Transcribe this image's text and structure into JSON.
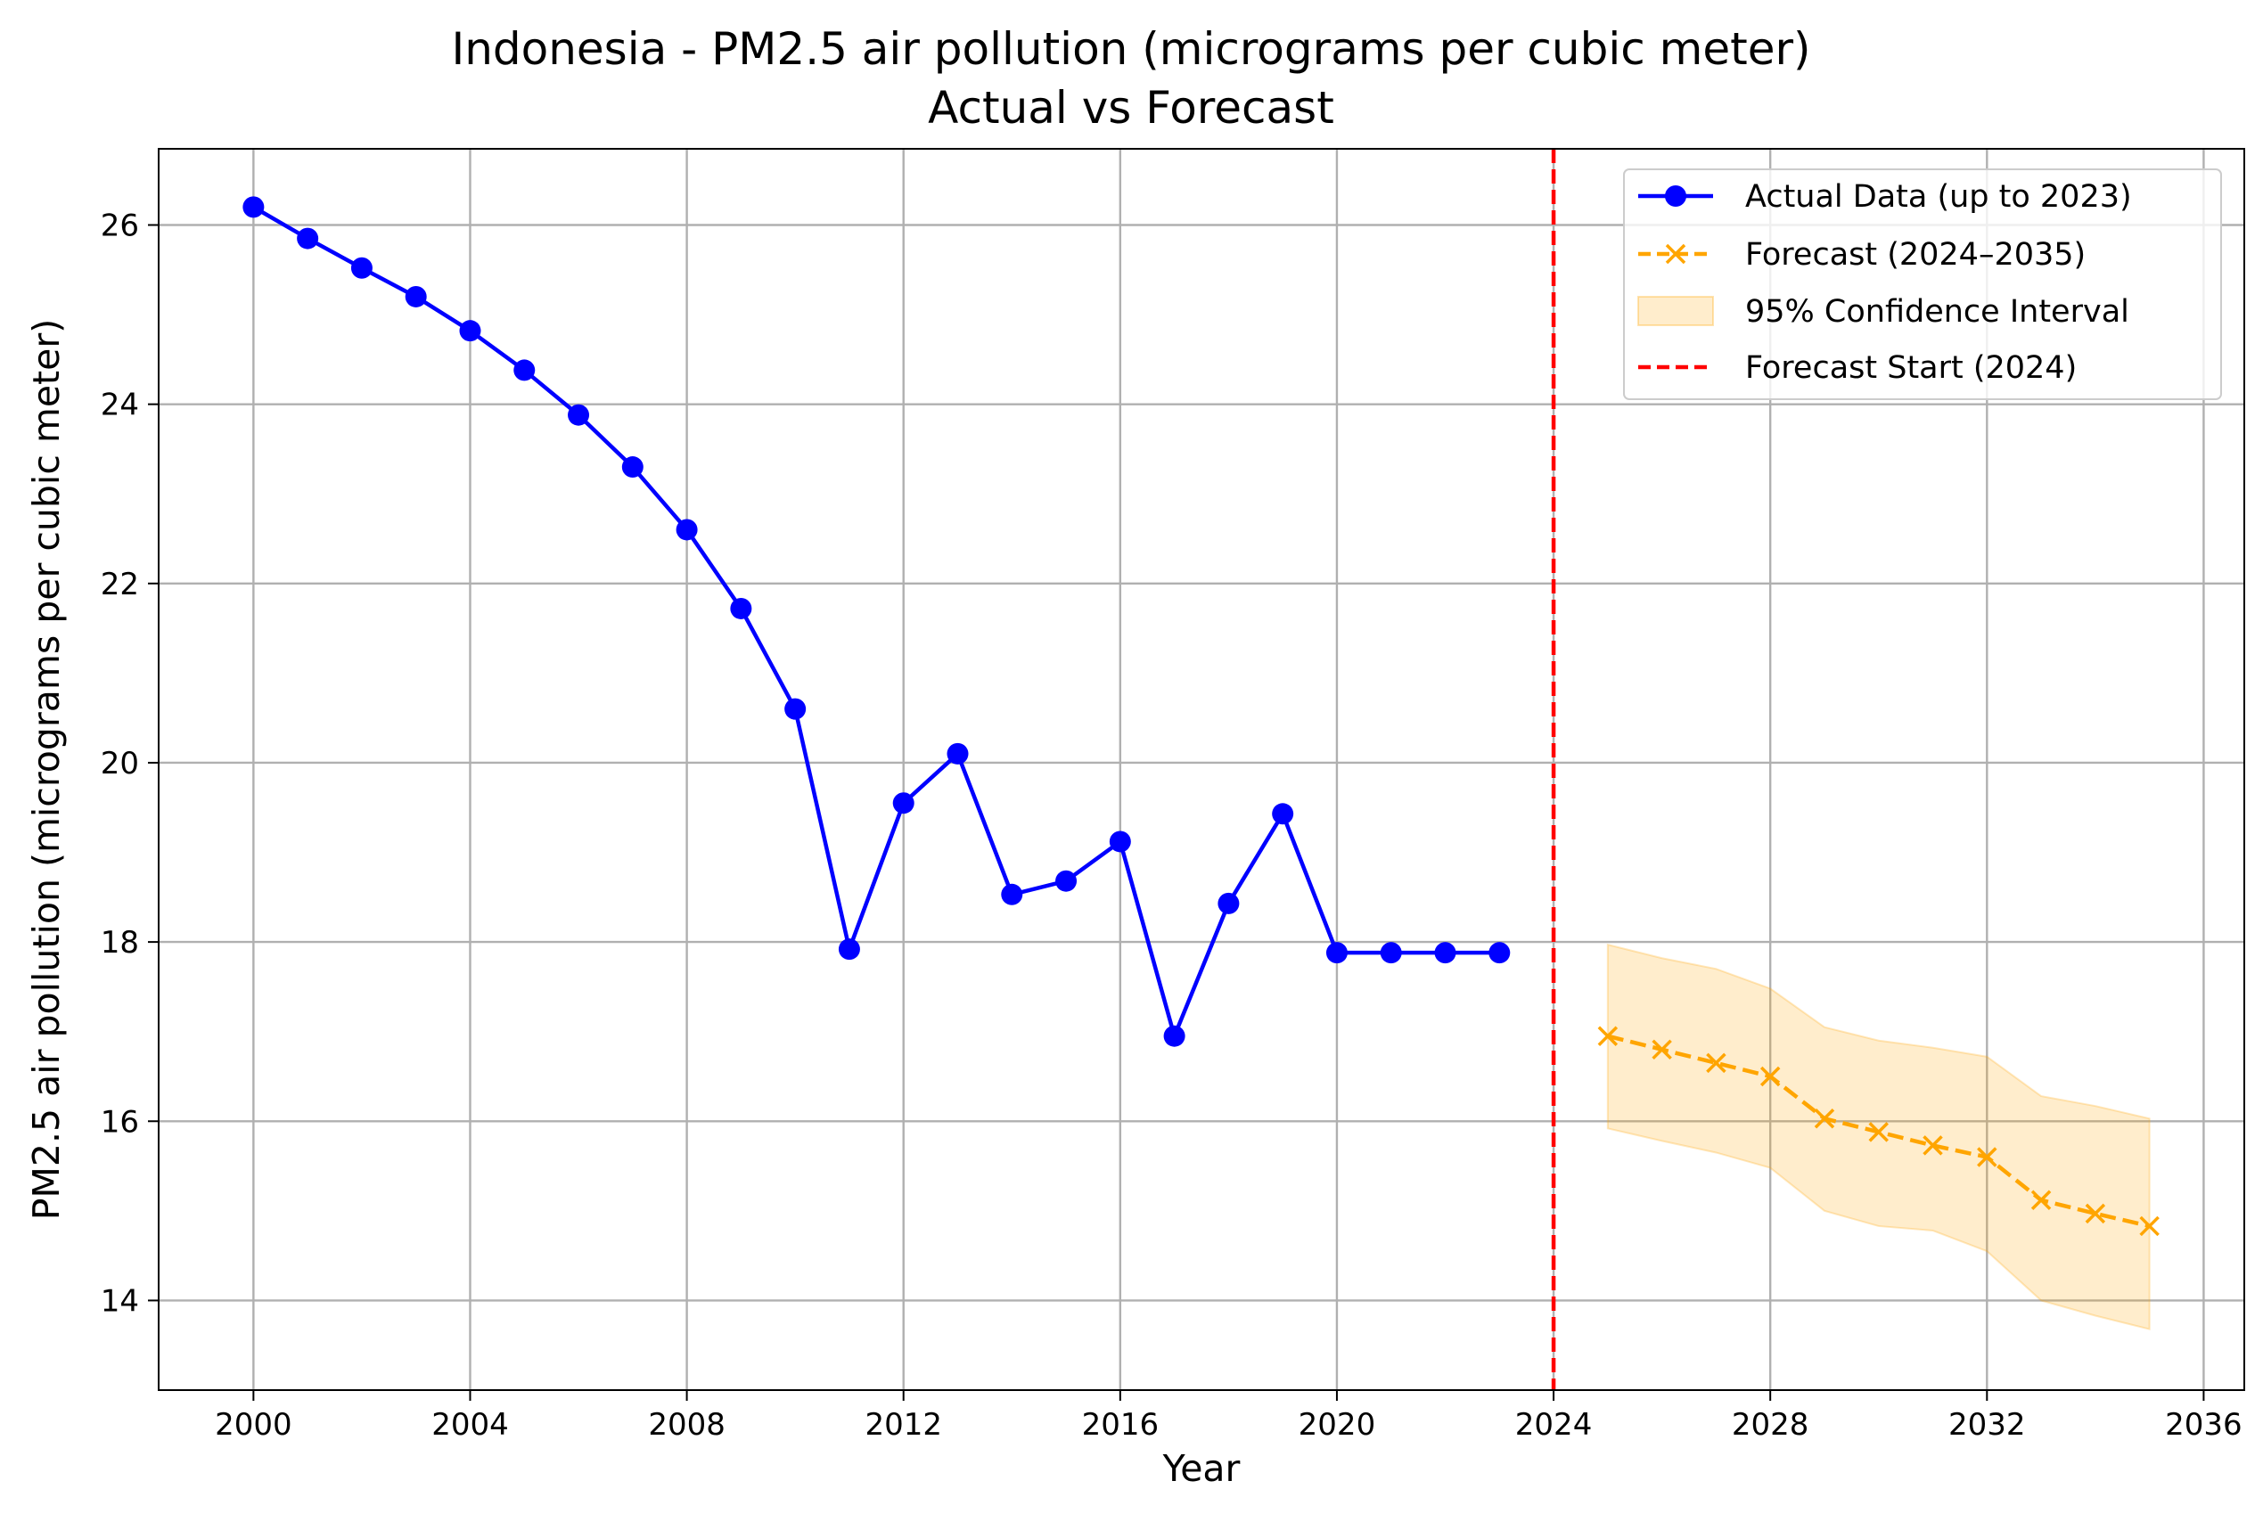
{
  "chart_data": {
    "type": "line",
    "title": "Indonesia - PM2.5 air pollution (micrograms per cubic meter)",
    "subtitle": "Actual vs Forecast",
    "xlabel": "Year",
    "ylabel": "PM2.5 air pollution (micrograms per cubic meter)",
    "xlim": [
      1998.25,
      2036.75
    ],
    "ylim": [
      13.0,
      26.85
    ],
    "xticks": [
      2000,
      2004,
      2008,
      2012,
      2016,
      2020,
      2024,
      2028,
      2032,
      2036
    ],
    "yticks": [
      14,
      16,
      18,
      20,
      22,
      24,
      26
    ],
    "grid": true,
    "legend_position": "top-right",
    "series": [
      {
        "name": "Actual Data (up to 2023)",
        "color": "#0000ff",
        "style": "solid",
        "marker": "circle",
        "x": [
          2000,
          2001,
          2002,
          2003,
          2004,
          2005,
          2006,
          2007,
          2008,
          2009,
          2010,
          2011,
          2012,
          2013,
          2014,
          2015,
          2016,
          2017,
          2018,
          2019,
          2020,
          2021,
          2022,
          2023
        ],
        "y": [
          26.2,
          25.85,
          25.52,
          25.2,
          24.82,
          24.38,
          23.88,
          23.3,
          22.6,
          21.72,
          20.6,
          17.92,
          19.55,
          20.1,
          18.53,
          18.68,
          19.12,
          16.95,
          18.43,
          19.43,
          17.88,
          17.88,
          17.88,
          17.88
        ]
      },
      {
        "name": "Forecast (2024–2035)",
        "color": "#ffa500",
        "style": "dashed",
        "marker": "x",
        "x": [
          2025,
          2026,
          2027,
          2028,
          2029,
          2030,
          2031,
          2032,
          2033,
          2034,
          2035
        ],
        "y": [
          16.95,
          16.8,
          16.65,
          16.5,
          16.03,
          15.88,
          15.73,
          15.6,
          15.12,
          14.97,
          14.83
        ]
      }
    ],
    "confidence_interval": {
      "name": "95% Confidence Interval",
      "color": "#ffa500",
      "opacity": 0.2,
      "x": [
        2025,
        2026,
        2027,
        2028,
        2029,
        2030,
        2031,
        2032,
        2033,
        2034,
        2035
      ],
      "lower": [
        15.92,
        15.78,
        15.65,
        15.48,
        15.0,
        14.83,
        14.78,
        14.55,
        14.0,
        13.83,
        13.68
      ],
      "upper": [
        17.97,
        17.82,
        17.7,
        17.48,
        17.05,
        16.9,
        16.82,
        16.72,
        16.28,
        16.17,
        16.03
      ]
    },
    "vline": {
      "name": "Forecast Start (2024)",
      "x": 2024,
      "color": "#ff0000",
      "style": "dashed"
    }
  }
}
